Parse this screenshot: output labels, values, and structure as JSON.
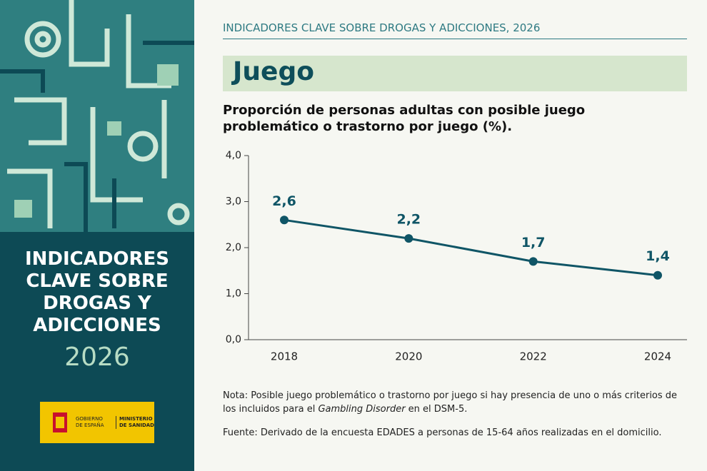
{
  "header": "INDICADORES CLAVE SOBRE DROGAS Y ADICCIONES, 2026",
  "section": "Juego",
  "sidebar": {
    "title_lines": [
      "INDICADORES",
      "CLAVE SOBRE",
      "DROGAS Y",
      "ADICCIONES"
    ],
    "year": "2026",
    "logo": {
      "left": [
        "GOBIERNO",
        "DE ESPAÑA"
      ],
      "right": [
        "MINISTERIO",
        "DE SANIDAD"
      ]
    }
  },
  "chart_data": {
    "type": "line",
    "title": "Proporción de personas adultas con posible juego problemático o trastorno por juego (%).",
    "categories": [
      "2018",
      "2020",
      "2022",
      "2024"
    ],
    "series": [
      {
        "name": "Proporción",
        "color": "#0f5566",
        "values": [
          2.6,
          2.2,
          1.7,
          1.4
        ],
        "value_labels": [
          "2,6",
          "2,2",
          "1,7",
          "1,4"
        ]
      }
    ],
    "ylim": [
      0,
      4
    ],
    "yticks": [
      {
        "value": 0,
        "label": "0,0"
      },
      {
        "value": 1,
        "label": "1,0"
      },
      {
        "value": 2,
        "label": "2,0"
      },
      {
        "value": 3,
        "label": "3,0"
      },
      {
        "value": 4,
        "label": "4,0"
      }
    ],
    "grid": false
  },
  "notes": {
    "note": [
      "Nota: Posible juego problemático o trastorno por juego si hay presencia de uno o más criterios de los incluidos para el ",
      "Gambling Disorder",
      " en el DSM-5."
    ],
    "source": "Fuente: Derivado de la encuesta EDADES a personas de 15-64 años realizadas en el domicilio."
  }
}
